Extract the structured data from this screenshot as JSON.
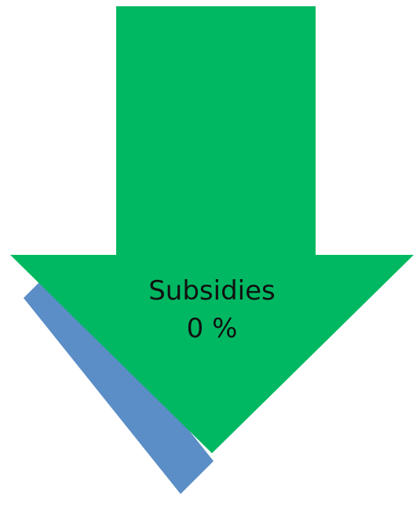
{
  "arrow": {
    "label": "Subsidies",
    "value": "0 %",
    "fill_color": "#00b862"
  },
  "stripe": {
    "fill_color": "#5b8ec7"
  },
  "background_color": "#ffffff"
}
